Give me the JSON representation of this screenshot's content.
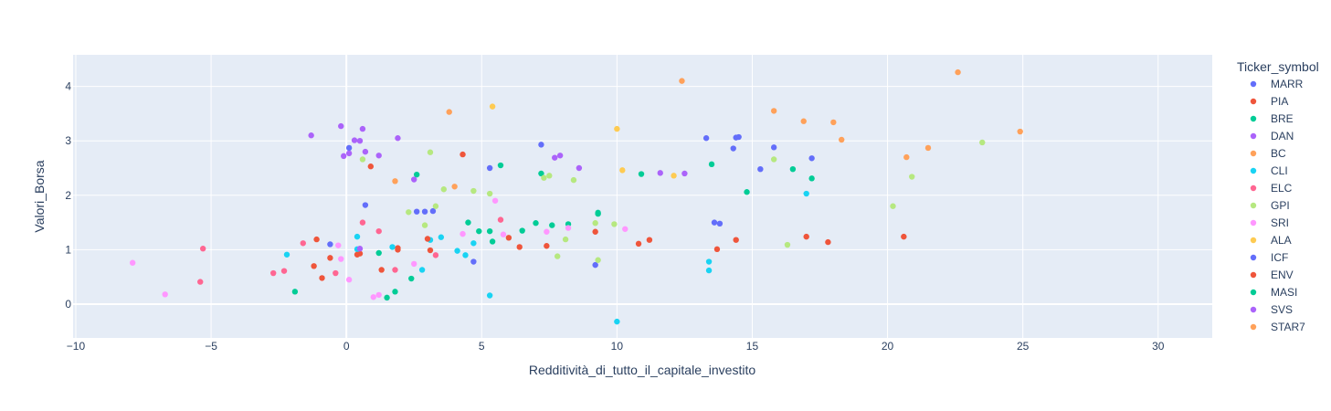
{
  "chart_data": {
    "type": "scatter",
    "xlabel": "Redditività_di_tutto_il_capitale_investito",
    "ylabel": "Valori_Borsa",
    "xlim": [
      -10.1,
      32
    ],
    "ylim": [
      -0.62,
      4.58
    ],
    "xticks": [
      -10,
      -5,
      0,
      5,
      10,
      15,
      20,
      25,
      30
    ],
    "xtick_labels": [
      "−10",
      "−5",
      "0",
      "5",
      "10",
      "15",
      "20",
      "25",
      "30"
    ],
    "yticks": [
      0,
      1,
      2,
      3,
      4
    ],
    "grid": true,
    "legend_title": "Ticker_symbol",
    "legend_position": "right",
    "series": [
      {
        "name": "MARR",
        "color": "#636efa",
        "x": [
          0.1,
          0.7,
          2.6,
          3.2,
          4.7,
          5.3,
          7.2,
          9.2,
          13.3,
          13.6,
          13.8,
          14.3,
          14.4,
          14.5,
          15.3,
          15.8,
          17.2
        ],
        "y": [
          2.87,
          1.82,
          1.7,
          1.71,
          0.78,
          2.5,
          2.93,
          0.72,
          3.05,
          1.5,
          1.48,
          2.86,
          3.06,
          3.07,
          2.48,
          2.88,
          2.68
        ]
      },
      {
        "name": "PIA",
        "color": "#EF553B",
        "x": [
          -1.2,
          -1.1,
          -0.9,
          -0.6,
          0.5,
          0.9,
          1.3,
          1.9,
          1.9,
          3.1,
          4.3,
          6.0,
          6.4,
          7.4,
          9.2,
          10.8,
          11.2,
          13.7,
          14.4,
          17.0,
          17.8,
          20.6
        ],
        "y": [
          0.7,
          1.19,
          0.48,
          0.85,
          0.93,
          2.53,
          0.63,
          1.0,
          1.03,
          0.99,
          2.75,
          1.22,
          1.05,
          1.07,
          1.33,
          1.11,
          1.18,
          1.01,
          1.18,
          1.24,
          1.14,
          1.24
        ]
      },
      {
        "name": "BRE",
        "color": "#00cc96",
        "x": [
          -1.9,
          1.2,
          1.5,
          1.8,
          2.4,
          2.6,
          4.5,
          4.9,
          5.3,
          5.4,
          5.7,
          6.5,
          7.0,
          7.2,
          7.6,
          8.2,
          9.3,
          10.9,
          13.5,
          14.8,
          16.5,
          17.2
        ],
        "y": [
          0.23,
          0.94,
          0.12,
          0.23,
          0.47,
          2.38,
          1.5,
          1.34,
          1.34,
          1.15,
          2.55,
          1.35,
          1.49,
          2.4,
          1.45,
          1.47,
          1.66,
          2.39,
          2.57,
          2.06,
          2.48,
          2.31
        ]
      },
      {
        "name": "DAN",
        "color": "#ab63fa",
        "x": [
          -1.3,
          -0.2,
          -0.1,
          0.1,
          0.3,
          0.5,
          0.6,
          0.7,
          1.2,
          1.9,
          2.5,
          7.7,
          7.9,
          8.6,
          11.6,
          12.5
        ],
        "y": [
          3.1,
          3.27,
          2.72,
          2.77,
          3.01,
          3.0,
          3.22,
          2.8,
          2.73,
          3.05,
          2.29,
          2.69,
          2.73,
          2.5,
          2.41,
          2.4
        ]
      },
      {
        "name": "BC",
        "color": "#FFA15A",
        "x": [
          1.8,
          3.8,
          4.0,
          15.8,
          16.9,
          18.0,
          18.3,
          20.7,
          21.5,
          22.6,
          24.9
        ],
        "y": [
          2.26,
          3.53,
          2.16,
          3.55,
          3.36,
          3.34,
          3.02,
          2.7,
          2.87,
          4.26,
          3.17
        ]
      },
      {
        "name": "CLI",
        "color": "#19d3f3",
        "x": [
          -2.2,
          0.4,
          0.4,
          1.7,
          2.8,
          3.1,
          3.5,
          4.1,
          4.4,
          4.7,
          5.3,
          10.0,
          13.4,
          13.4,
          17.0
        ],
        "y": [
          0.91,
          1.24,
          1.01,
          1.05,
          0.63,
          1.18,
          1.23,
          0.98,
          0.9,
          1.12,
          0.16,
          -0.32,
          0.78,
          0.62,
          2.03
        ]
      },
      {
        "name": "ELC",
        "color": "#FF6692",
        "x": [
          -5.4,
          -5.3,
          -2.7,
          -2.3,
          -1.6,
          -0.4,
          0.6,
          1.2,
          1.8,
          3.3,
          5.7
        ],
        "y": [
          0.41,
          1.02,
          0.57,
          0.61,
          1.12,
          0.57,
          1.5,
          1.34,
          0.63,
          0.9,
          1.55
        ]
      },
      {
        "name": "GPI",
        "color": "#B6E880",
        "x": [
          0.6,
          2.3,
          2.9,
          3.1,
          3.3,
          3.6,
          4.7,
          5.3,
          7.3,
          7.5,
          7.8,
          8.1,
          8.4,
          9.2,
          9.3,
          9.9,
          15.8,
          16.3,
          20.2,
          20.9,
          23.5
        ],
        "y": [
          2.66,
          1.69,
          1.45,
          2.79,
          1.8,
          2.11,
          2.08,
          2.03,
          2.32,
          2.36,
          0.88,
          1.19,
          2.28,
          1.49,
          0.81,
          1.47,
          2.66,
          1.09,
          1.8,
          2.34,
          2.97
        ]
      },
      {
        "name": "SRI",
        "color": "#FF97FF",
        "x": [
          -7.9,
          -6.7,
          -0.3,
          -0.2,
          0.1,
          1.0,
          1.2,
          2.5,
          4.3,
          5.5,
          5.8,
          7.4,
          8.2,
          10.3
        ],
        "y": [
          0.76,
          0.18,
          1.08,
          0.83,
          0.45,
          0.13,
          0.17,
          0.74,
          1.29,
          1.9,
          1.28,
          1.33,
          1.4,
          1.38
        ]
      },
      {
        "name": "ALA",
        "color": "#FECB52",
        "x": [
          5.4,
          10.0,
          10.2,
          12.1
        ],
        "y": [
          3.63,
          3.22,
          2.46,
          2.36
        ]
      },
      {
        "name": "ICF",
        "color": "#636efa",
        "x": [
          -0.6,
          2.9
        ],
        "y": [
          1.1,
          1.7
        ]
      },
      {
        "name": "ENV",
        "color": "#EF553B",
        "x": [
          0.4,
          3.0
        ],
        "y": [
          0.91,
          1.2
        ]
      },
      {
        "name": "MASI",
        "color": "#00cc96",
        "x": [
          9.3
        ],
        "y": [
          1.68
        ]
      },
      {
        "name": "SVS",
        "color": "#ab63fa",
        "x": [
          0.5
        ],
        "y": [
          1.02
        ]
      },
      {
        "name": "STAR7",
        "color": "#FFA15A",
        "x": [
          12.4
        ],
        "y": [
          4.1
        ]
      }
    ]
  }
}
